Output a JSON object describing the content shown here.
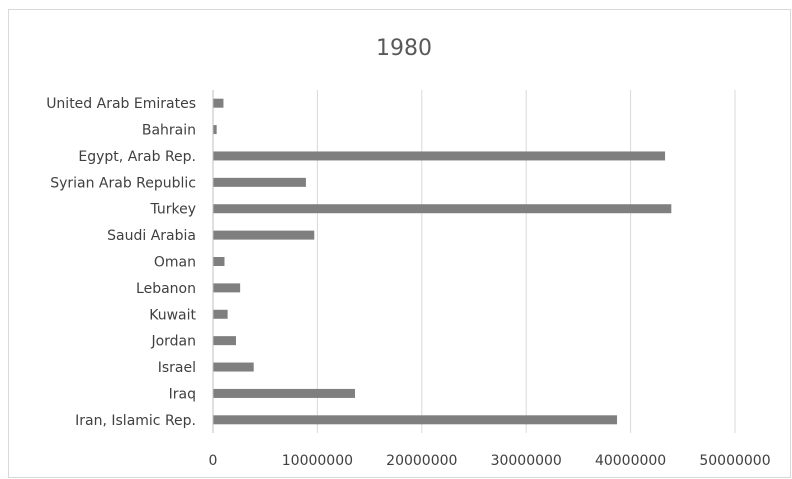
{
  "chart_data": {
    "type": "bar",
    "orientation": "horizontal",
    "title": "1980",
    "xlabel": "",
    "ylabel": "",
    "xlim": [
      0,
      50000000
    ],
    "x_ticks": [
      0,
      10000000,
      20000000,
      30000000,
      40000000,
      50000000
    ],
    "x_tick_labels": [
      "0",
      "10000000",
      "20000000",
      "30000000",
      "40000000",
      "50000000"
    ],
    "grid": true,
    "legend": "none",
    "bar_color": "#7f7f7f",
    "categories": [
      "United Arab Emirates",
      "Bahrain",
      "Egypt, Arab Rep.",
      "Syrian Arab Republic",
      "Turkey",
      "Saudi Arabia",
      "Oman",
      "Lebanon",
      "Kuwait",
      "Jordan",
      "Israel",
      "Iraq",
      "Iran, Islamic Rep."
    ],
    "values": [
      1000000,
      350000,
      43300000,
      8900000,
      43900000,
      9700000,
      1100000,
      2600000,
      1400000,
      2200000,
      3900000,
      13600000,
      38700000
    ]
  }
}
